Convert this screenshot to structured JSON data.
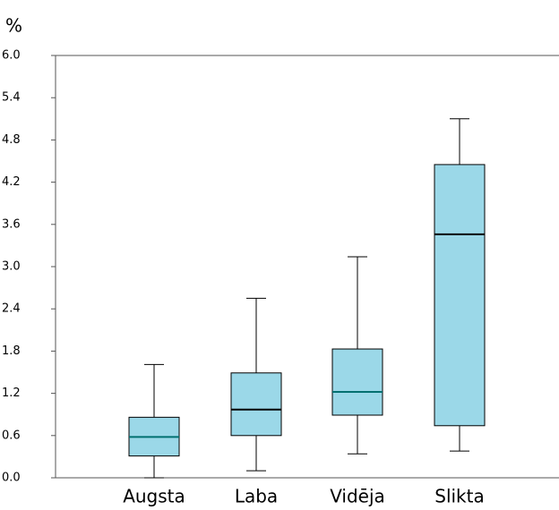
{
  "chart_data": {
    "type": "box",
    "y_label": "%",
    "categories": [
      "Augsta",
      "Laba",
      "Vidēja",
      "Slikta"
    ],
    "min": [
      0.0,
      0.1,
      0.34,
      0.38
    ],
    "q1": [
      0.31,
      0.6,
      0.89,
      0.74
    ],
    "median": [
      0.58,
      0.97,
      1.22,
      3.46
    ],
    "q3": [
      0.86,
      1.49,
      1.83,
      4.45
    ],
    "max": [
      1.61,
      2.55,
      3.14,
      5.1
    ],
    "color": "#9bd8e8",
    "median_colors": [
      "#007070",
      "#000000",
      "#007070",
      "#000000"
    ],
    "ylim": [
      0,
      6
    ],
    "yticks": [
      {
        "value": 0,
        "label": "0.0"
      },
      0.6,
      1.2,
      1.8,
      2.4,
      {
        "value": 3,
        "label": "3.0"
      },
      3.6,
      4.2,
      4.8,
      5.4,
      {
        "value": 6,
        "label": "6.0"
      }
    ]
  }
}
